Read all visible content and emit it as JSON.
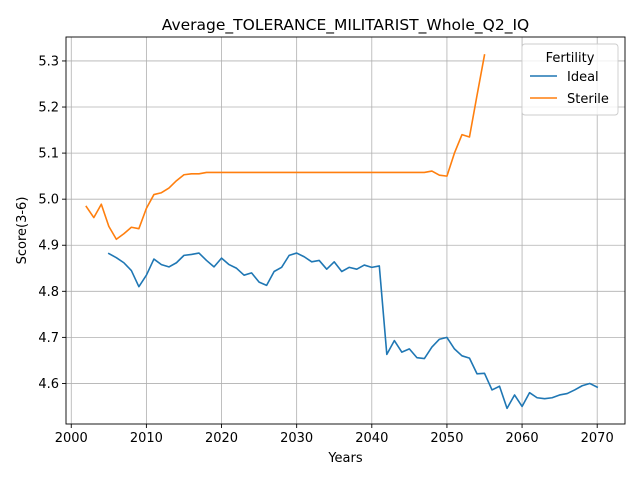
{
  "chart_data": {
    "type": "line",
    "title": "Average_TOLERANCE_MILITARIST_Whole_Q2_IQ",
    "xlabel": "Years",
    "ylabel": "Score(3-6)",
    "xlim": [
      1999.3,
      2073.7
    ],
    "ylim": [
      4.512,
      5.352
    ],
    "xticks": [
      2000,
      2010,
      2020,
      2030,
      2040,
      2050,
      2060,
      2070
    ],
    "yticks": [
      4.6,
      4.7,
      4.8,
      4.9,
      5.0,
      5.1,
      5.2,
      5.3
    ],
    "grid": true,
    "legend": {
      "title": "Fertility",
      "position": "top-right"
    },
    "series": [
      {
        "name": "Ideal",
        "color": "#1f77b4",
        "x": [
          2005,
          2006,
          2007,
          2008,
          2009,
          2010,
          2011,
          2012,
          2013,
          2014,
          2015,
          2016,
          2017,
          2018,
          2019,
          2020,
          2021,
          2022,
          2023,
          2024,
          2025,
          2026,
          2027,
          2028,
          2029,
          2030,
          2031,
          2032,
          2033,
          2034,
          2035,
          2036,
          2037,
          2038,
          2039,
          2040,
          2041,
          2042,
          2043,
          2044,
          2045,
          2046,
          2047,
          2048,
          2049,
          2050,
          2051,
          2052,
          2053,
          2054,
          2055,
          2056,
          2057,
          2058,
          2059,
          2060,
          2061,
          2062,
          2063,
          2064,
          2065,
          2066,
          2067,
          2068,
          2069,
          2070
        ],
        "y": [
          4.882,
          4.873,
          4.862,
          4.845,
          4.81,
          4.835,
          4.87,
          4.858,
          4.853,
          4.862,
          4.878,
          4.88,
          4.883,
          4.867,
          4.853,
          4.872,
          4.858,
          4.85,
          4.835,
          4.84,
          4.82,
          4.813,
          4.843,
          4.852,
          4.878,
          4.883,
          4.875,
          4.864,
          4.867,
          4.848,
          4.864,
          4.843,
          4.852,
          4.848,
          4.857,
          4.852,
          4.855,
          4.663,
          4.693,
          4.668,
          4.675,
          4.656,
          4.654,
          4.679,
          4.696,
          4.7,
          4.675,
          4.66,
          4.655,
          4.621,
          4.622,
          4.586,
          4.594,
          4.546,
          4.575,
          4.55,
          4.58,
          4.569,
          4.567,
          4.569,
          4.575,
          4.578,
          4.586,
          4.595,
          4.6,
          4.592
        ]
      },
      {
        "name": "Sterile",
        "color": "#ff7f0e",
        "x": [
          2002,
          2003,
          2004,
          2005,
          2006,
          2007,
          2008,
          2009,
          2010,
          2011,
          2012,
          2013,
          2014,
          2015,
          2016,
          2017,
          2018,
          2019,
          2020,
          2021,
          2022,
          2023,
          2024,
          2025,
          2026,
          2027,
          2028,
          2029,
          2030,
          2031,
          2032,
          2033,
          2034,
          2035,
          2036,
          2037,
          2038,
          2039,
          2040,
          2041,
          2042,
          2043,
          2044,
          2045,
          2046,
          2047,
          2048,
          2049,
          2050,
          2051,
          2052,
          2053,
          2054,
          2055
        ],
        "y": [
          4.984,
          4.96,
          4.989,
          4.941,
          4.913,
          4.925,
          4.939,
          4.936,
          4.98,
          5.01,
          5.014,
          5.024,
          5.04,
          5.053,
          5.055,
          5.055,
          5.058,
          5.058,
          5.058,
          5.058,
          5.058,
          5.058,
          5.058,
          5.058,
          5.058,
          5.058,
          5.058,
          5.058,
          5.058,
          5.058,
          5.058,
          5.058,
          5.058,
          5.058,
          5.058,
          5.058,
          5.058,
          5.058,
          5.058,
          5.058,
          5.058,
          5.058,
          5.058,
          5.058,
          5.058,
          5.058,
          5.061,
          5.052,
          5.05,
          5.1,
          5.14,
          5.135,
          5.225,
          5.313
        ]
      }
    ]
  }
}
